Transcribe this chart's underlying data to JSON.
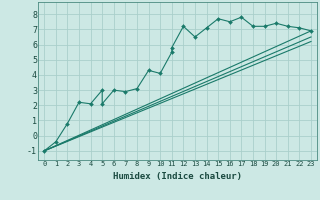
{
  "xlabel": "Humidex (Indice chaleur)",
  "bg_color": "#cce8e4",
  "grid_color": "#aacfcb",
  "line_color": "#1a7a6a",
  "xlim": [
    -0.5,
    23.5
  ],
  "ylim": [
    -1.6,
    8.8
  ],
  "xticks": [
    0,
    1,
    2,
    3,
    4,
    5,
    6,
    7,
    8,
    9,
    10,
    11,
    12,
    13,
    14,
    15,
    16,
    17,
    18,
    19,
    20,
    21,
    22,
    23
  ],
  "yticks": [
    -1,
    0,
    1,
    2,
    3,
    4,
    5,
    6,
    7,
    8
  ],
  "main_line": [
    [
      0,
      -1
    ],
    [
      1,
      -0.4
    ],
    [
      2,
      0.8
    ],
    [
      3,
      2.2
    ],
    [
      4,
      2.1
    ],
    [
      5,
      3.0
    ],
    [
      5,
      2.1
    ],
    [
      6,
      3.0
    ],
    [
      7,
      2.9
    ],
    [
      8,
      3.1
    ],
    [
      9,
      4.3
    ],
    [
      10,
      4.1
    ],
    [
      11,
      5.5
    ],
    [
      11,
      5.8
    ],
    [
      12,
      7.2
    ],
    [
      13,
      6.5
    ],
    [
      14,
      7.1
    ],
    [
      15,
      7.7
    ],
    [
      16,
      7.5
    ],
    [
      17,
      7.8
    ],
    [
      18,
      7.2
    ],
    [
      19,
      7.2
    ],
    [
      20,
      7.4
    ],
    [
      21,
      7.2
    ],
    [
      22,
      7.1
    ],
    [
      23,
      6.9
    ]
  ],
  "straight_lines": [
    [
      [
        0,
        -1
      ],
      [
        23,
        6.9
      ]
    ],
    [
      [
        0,
        -1
      ],
      [
        23,
        6.5
      ]
    ],
    [
      [
        0,
        -1
      ],
      [
        23,
        6.2
      ]
    ]
  ],
  "xtick_fontsize": 5.0,
  "ytick_fontsize": 6.0,
  "xlabel_fontsize": 6.5
}
